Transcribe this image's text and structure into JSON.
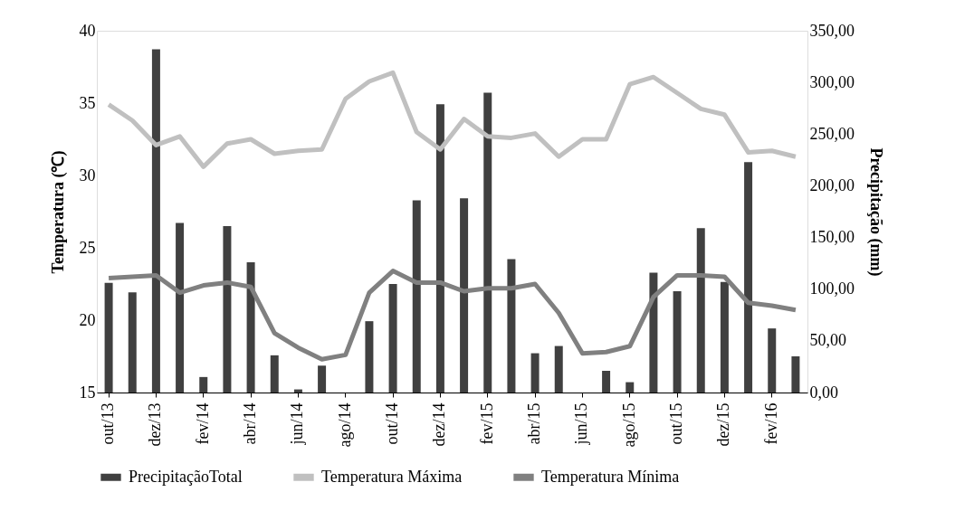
{
  "chart_data": {
    "type": "line",
    "categories": [
      "out/13",
      null,
      "dez/13",
      null,
      "fev/14",
      null,
      "abr/14",
      null,
      "jun/14",
      null,
      "ago/14",
      null,
      "out/14",
      null,
      "dez/14",
      null,
      "fev/15",
      null,
      "abr/15",
      null,
      "jun/15",
      null,
      "ago/15",
      null,
      "out/15",
      null,
      "dez/15",
      null,
      "fev/16",
      null
    ],
    "series": [
      {
        "name": "PrecipitaçãoTotal",
        "type": "bar",
        "axis": "y2",
        "color": "#404040",
        "values": [
          106,
          97,
          332,
          164,
          15,
          161,
          126,
          36,
          3,
          26,
          0,
          69,
          105,
          186,
          279,
          188,
          290,
          129,
          38,
          45,
          0,
          21,
          10,
          116,
          98,
          159,
          107,
          223,
          62,
          35
        ]
      },
      {
        "name": "Temperatura Máxima",
        "color": "#c0c0c0",
        "values": [
          34.9,
          33.8,
          32.1,
          32.7,
          30.6,
          32.2,
          32.5,
          31.5,
          31.7,
          31.8,
          35.3,
          36.5,
          37.1,
          33.0,
          31.8,
          33.9,
          32.7,
          32.6,
          32.9,
          31.3,
          32.5,
          32.5,
          36.3,
          36.8,
          35.7,
          34.6,
          34.2,
          31.6,
          31.7,
          31.3
        ]
      },
      {
        "name": "Temperatura Mínima",
        "color": "#808080",
        "values": [
          22.9,
          23.0,
          23.1,
          21.9,
          22.4,
          22.6,
          22.3,
          19.1,
          18.1,
          17.3,
          17.6,
          21.9,
          23.4,
          22.6,
          22.6,
          22.0,
          22.2,
          22.2,
          22.5,
          20.5,
          17.7,
          17.8,
          18.2,
          21.6,
          23.1,
          23.1,
          23.0,
          21.2,
          21.0,
          20.7
        ]
      }
    ],
    "ylabel": "Temperatura (℃)",
    "y2label": "Precipitação (mm)",
    "ylim": [
      15,
      40
    ],
    "yticks": [
      15,
      20,
      25,
      30,
      35,
      40
    ],
    "y2lim": [
      0,
      350
    ],
    "y2ticks": [
      {
        "value": 0,
        "label": "0,00"
      },
      {
        "value": 50,
        "label": "50,00"
      },
      {
        "value": 100,
        "label": "100,00"
      },
      {
        "value": 150,
        "label": "150,00"
      },
      {
        "value": 200,
        "label": "200,00"
      },
      {
        "value": 250,
        "label": "250,00"
      },
      {
        "value": 300,
        "label": "300,00"
      },
      {
        "value": 350,
        "label": "350,00"
      }
    ],
    "legend": "bottom",
    "grid": false,
    "marker": "none",
    "line_style": "solid"
  }
}
